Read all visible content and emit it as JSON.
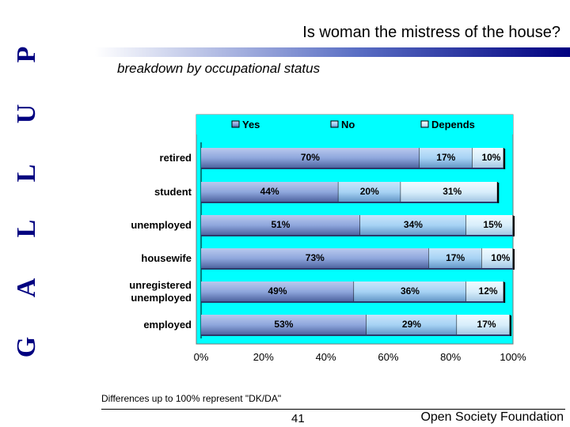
{
  "brand": {
    "letters": [
      "G",
      "A",
      "L",
      "L",
      "U",
      "P"
    ]
  },
  "header": {
    "title": "Is woman the mistress of the house?",
    "subtitle": "breakdown by occupational status"
  },
  "footer": {
    "note": "Differences up to 100% represent \"DK/DA\"",
    "page_number": "41",
    "organization": "Open Society Foundation"
  },
  "colors": {
    "plot_background": "#00ffff",
    "yes": "#8ea6dc",
    "no": "#a6d2f4",
    "depends": "#d8eefb",
    "rule_dark": "#000080"
  },
  "chart_data": {
    "type": "bar",
    "orientation": "horizontal",
    "stacked": true,
    "categories": [
      "retired",
      "student",
      "unemployed",
      "housewife",
      "unregistered unemployed",
      "employed"
    ],
    "series": [
      {
        "name": "Yes",
        "values": [
          70,
          44,
          51,
          73,
          49,
          53
        ]
      },
      {
        "name": "No",
        "values": [
          17,
          20,
          34,
          17,
          36,
          29
        ]
      },
      {
        "name": "Depends",
        "values": [
          10,
          31,
          15,
          10,
          12,
          17
        ]
      }
    ],
    "data_labels": [
      [
        "70%",
        "17%",
        "10%"
      ],
      [
        "44%",
        "20%",
        "31%"
      ],
      [
        "51%",
        "34%",
        "15%"
      ],
      [
        "73%",
        "17%",
        "10%"
      ],
      [
        "49%",
        "36%",
        "12%"
      ],
      [
        "53%",
        "29%",
        "17%"
      ]
    ],
    "xlim": [
      0,
      100
    ],
    "xticks": [
      "0%",
      "20%",
      "40%",
      "60%",
      "80%",
      "100%"
    ],
    "legend": "top",
    "grid": false
  }
}
